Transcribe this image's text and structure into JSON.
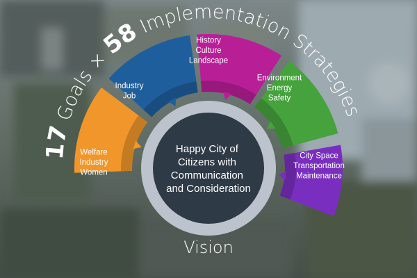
{
  "header": {
    "goals_number": "17",
    "goals_label": " Goals",
    "times_sign": " × ",
    "strategies_number": "58",
    "strategies_label": " Implementation Strategies"
  },
  "center": {
    "lines": [
      "Happy City of",
      "Citizens with",
      "Communication",
      "and Consideration"
    ]
  },
  "footer": {
    "vision_label": "Vision"
  },
  "segments": [
    {
      "lines": [
        "Welfare",
        "Industry",
        "Women"
      ],
      "color": "#f0962a"
    },
    {
      "lines": [
        "Industry",
        "Job"
      ],
      "color": "#1f5e9c"
    },
    {
      "lines": [
        "History",
        "Culture",
        "Landscape"
      ],
      "color": "#b81f97"
    },
    {
      "lines": [
        "Environment",
        "Energy",
        "Safety"
      ],
      "color": "#45a23c"
    },
    {
      "lines": [
        "City Space",
        "Transportation",
        "Maintenance"
      ],
      "color": "#7a2ec0"
    }
  ],
  "colors": {
    "ring": "#bcc3cc",
    "core": "#2f3a47"
  }
}
